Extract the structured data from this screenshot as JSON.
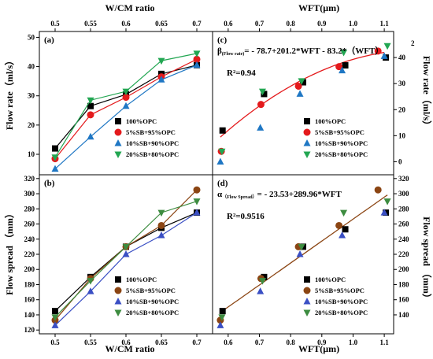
{
  "chart_data": [
    {
      "panel": "a",
      "type": "line",
      "x_label": "W/CM ratio",
      "y_label": "Flow rate（ml/s）",
      "x_ticks": [
        "0.5",
        "0.55",
        "0.6",
        "0.65",
        "0.7"
      ],
      "y_ticks": [
        "10",
        "20",
        "30",
        "40",
        "50"
      ],
      "xlim": [
        0.5,
        0.7
      ],
      "ylim": [
        3,
        52
      ],
      "categories": [
        0.5,
        0.55,
        0.6,
        0.65,
        0.7
      ],
      "series": [
        {
          "name": "100%OPC",
          "marker": "square",
          "color": "#000000",
          "values": [
            12,
            26.5,
            30.5,
            37.5,
            40.5
          ]
        },
        {
          "name": "5%SB+95%OPC",
          "marker": "circle",
          "color": "#e41a1c",
          "values": [
            8.5,
            23.5,
            29.5,
            36.5,
            42.5
          ]
        },
        {
          "name": "10%SB+90%OPC",
          "marker": "triangle-up",
          "color": "#1f77c4",
          "values": [
            5,
            16,
            26.5,
            35.5,
            40.5
          ]
        },
        {
          "name": "20%SB+80%OPC",
          "marker": "triangle-down",
          "color": "#22a652",
          "values": [
            9,
            28.5,
            31.5,
            42,
            44.5
          ]
        }
      ]
    },
    {
      "panel": "b",
      "type": "line",
      "x_label": "W/CM ratio",
      "y_label": "Flow spread （mm）",
      "x_ticks": [
        "0.5",
        "0.55",
        "0.6",
        "0.65",
        "0.7"
      ],
      "y_ticks": [
        "120",
        "140",
        "160",
        "180",
        "200",
        "220",
        "240",
        "260",
        "280",
        "300",
        "320"
      ],
      "xlim": [
        0.5,
        0.7
      ],
      "ylim": [
        115,
        325
      ],
      "categories": [
        0.5,
        0.55,
        0.6,
        0.65,
        0.7
      ],
      "series": [
        {
          "name": "100%OPC",
          "marker": "square",
          "color": "#000000",
          "values": [
            145,
            190,
            230,
            255,
            275
          ]
        },
        {
          "name": "5%SB+95%OPC",
          "marker": "circle",
          "color": "#8b4513",
          "values": [
            133,
            188,
            230,
            258,
            305
          ]
        },
        {
          "name": "10%SB+90%OPC",
          "marker": "triangle-up",
          "color": "#3a4fc4",
          "values": [
            126,
            171,
            220,
            245,
            275
          ]
        },
        {
          "name": "20%SB+80%OPC",
          "marker": "triangle-down",
          "color": "#3d8c40",
          "values": [
            137,
            185,
            230,
            275,
            290
          ]
        }
      ]
    },
    {
      "panel": "c",
      "type": "scatter",
      "x_label": "WFT(μm)",
      "y_label": "Flow rate（ml/s）",
      "x_ticks": [
        "0.6",
        "0.7",
        "0.8",
        "0.9",
        "1.0",
        "1.1"
      ],
      "y_ticks": [
        "0",
        "10",
        "20",
        "30",
        "40"
      ],
      "xlim": [
        0.55,
        1.13
      ],
      "ylim": [
        -5,
        50
      ],
      "equation_prefix": "β",
      "equation_sub": "(Flow rate)",
      "equation_body": "= - 78.7+201.2*WFT - 83.2*（WFT）",
      "equation_sup": "2",
      "r2": "R²=0.94",
      "fit": {
        "type": "quadratic",
        "color": "#e41a1c",
        "a": -78.7,
        "b": 201.2,
        "c": -83.2,
        "x_range": [
          0.575,
          1.1
        ]
      },
      "series": [
        {
          "name": "100%OPC",
          "marker": "square",
          "color": "#000000",
          "points": [
            [
              0.582,
              12
            ],
            [
              0.715,
              26
            ],
            [
              0.84,
              30.5
            ],
            [
              0.975,
              37
            ],
            [
              1.105,
              40
            ]
          ]
        },
        {
          "name": "5%SB+95%OPC",
          "marker": "circle",
          "color": "#e41a1c",
          "points": [
            [
              0.578,
              4
            ],
            [
              0.705,
              22
            ],
            [
              0.825,
              29
            ],
            [
              0.955,
              36.5
            ],
            [
              1.08,
              42.5
            ]
          ]
        },
        {
          "name": "10%SB+90%OPC",
          "marker": "triangle-up",
          "color": "#1f77c4",
          "points": [
            [
              0.575,
              0
            ],
            [
              0.703,
              13
            ],
            [
              0.83,
              26
            ],
            [
              0.965,
              35
            ],
            [
              1.1,
              40.5
            ]
          ]
        },
        {
          "name": "20%SB+80%OPC",
          "marker": "triangle-down",
          "color": "#22a652",
          "points": [
            [
              0.58,
              4
            ],
            [
              0.71,
              27
            ],
            [
              0.835,
              31
            ],
            [
              0.97,
              42
            ],
            [
              1.11,
              44.5
            ]
          ]
        }
      ]
    },
    {
      "panel": "d",
      "type": "scatter",
      "x_label": "WFT(μm)",
      "y_label": "Flow spread （mm）",
      "x_ticks": [
        "0.6",
        "0.7",
        "0.8",
        "0.9",
        "1.0",
        "1.1"
      ],
      "y_ticks": [
        "140",
        "160",
        "180",
        "200",
        "220",
        "240",
        "260",
        "280",
        "300",
        "320"
      ],
      "xlim": [
        0.55,
        1.13
      ],
      "ylim": [
        115,
        325
      ],
      "equation_prefix": "α",
      "equation_sub": "（Flow Spread）",
      "equation_body": "= - 23.53+289.96*WFT",
      "r2": "R²=0.9516",
      "fit": {
        "type": "linear",
        "color": "#8b4513",
        "a": -23.53,
        "b": 289.96,
        "x_range": [
          0.575,
          1.11
        ]
      },
      "series": [
        {
          "name": "100%OPC",
          "marker": "square",
          "color": "#000000",
          "points": [
            [
              0.582,
              145
            ],
            [
              0.715,
              190
            ],
            [
              0.84,
              230
            ],
            [
              0.975,
              253
            ],
            [
              1.105,
              275
            ]
          ]
        },
        {
          "name": "5%SB+95%OPC",
          "marker": "circle",
          "color": "#8b4513",
          "points": [
            [
              0.575,
              133
            ],
            [
              0.705,
              188
            ],
            [
              0.825,
              230
            ],
            [
              0.955,
              258
            ],
            [
              1.08,
              305
            ]
          ]
        },
        {
          "name": "10%SB+90%OPC",
          "marker": "triangle-up",
          "color": "#3a4fc4",
          "points": [
            [
              0.575,
              126
            ],
            [
              0.703,
              171
            ],
            [
              0.83,
              220
            ],
            [
              0.965,
              245
            ],
            [
              1.1,
              275
            ]
          ]
        },
        {
          "name": "20%SB+80%OPC",
          "marker": "triangle-down",
          "color": "#3d8c40",
          "points": [
            [
              0.58,
              137
            ],
            [
              0.71,
              185
            ],
            [
              0.835,
              230
            ],
            [
              0.97,
              275
            ],
            [
              1.11,
              290
            ]
          ]
        }
      ]
    }
  ],
  "figure_labels": {
    "top_x_left": "W/CM ratio",
    "top_x_right": "WFT(μm)",
    "bottom_x_left": "W/CM ratio",
    "bottom_x_right": "WFT(μm)",
    "left_y_top": "Flow rate（ml/s）",
    "left_y_bottom": "Flow spread （mm）",
    "right_y_top": "Flow rate（ml/s）",
    "right_y_bottom": "Flow spread （mm）"
  },
  "panel_labels": {
    "a": "(a)",
    "b": "(b)",
    "c": "(c)",
    "d": "(d)"
  }
}
